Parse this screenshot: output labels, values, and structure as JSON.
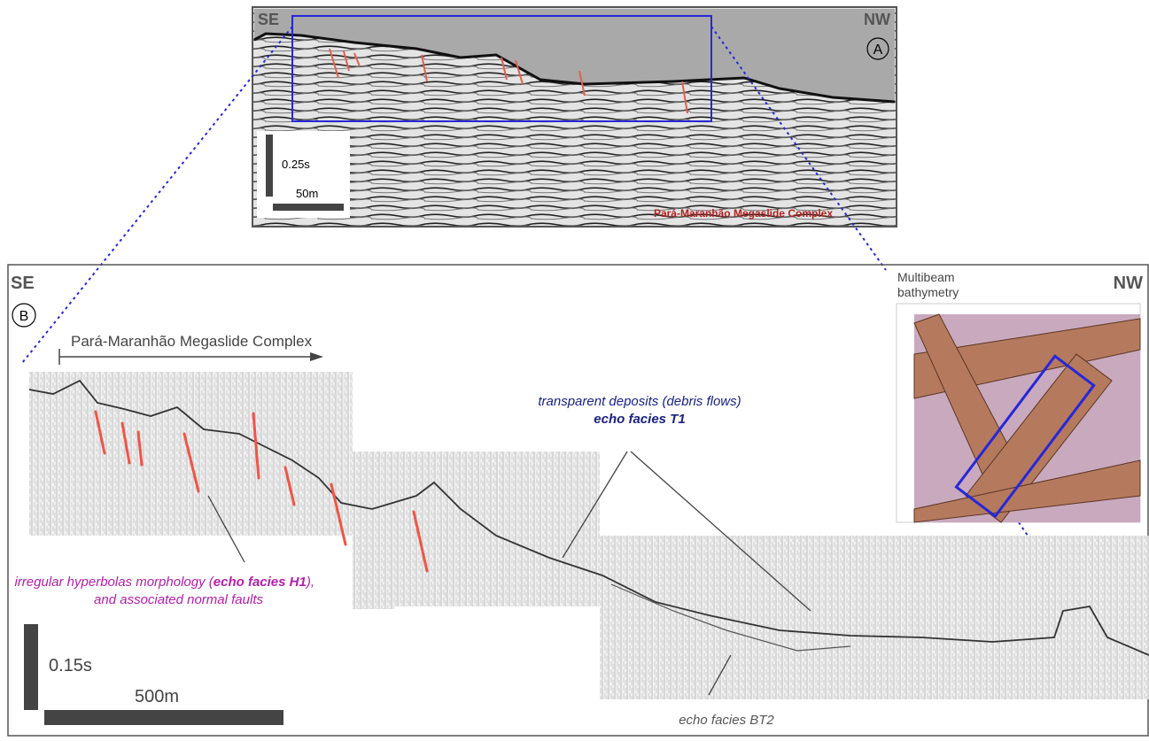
{
  "panel_a": {
    "left_label": "SE",
    "right_label": "NW",
    "panel_letter": "A",
    "scale_vertical": "0.25s",
    "scale_horizontal": "50m",
    "caption": "Pará-Maranhão Megaslide Complex"
  },
  "panel_b": {
    "left_label": "SE",
    "right_label": "NW",
    "panel_letter": "B",
    "arrow_label": "Pará-Maranhão Megaslide Complex",
    "inset_title": [
      "Multibeam",
      "bathymetry"
    ],
    "annotations": {
      "t1": {
        "line1": "transparent deposits (debris flows)",
        "line2": "echo facies T1"
      },
      "h1": {
        "before": "irregular hyperbolas morphology (",
        "emph": "echo facies H1",
        "after": "),",
        "line2": "and associated normal faults"
      },
      "bt2": "echo facies BT2"
    },
    "scale_vertical": "0.15s",
    "scale_horizontal": "500m"
  }
}
